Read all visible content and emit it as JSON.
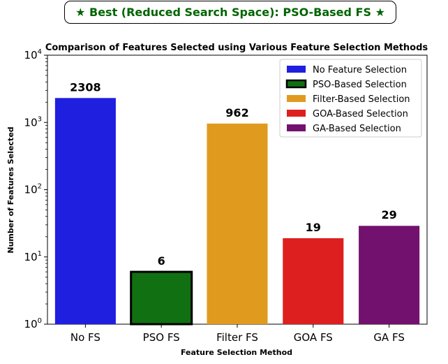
{
  "banner": {
    "text": "★ Best (Reduced Search Space): PSO-Based FS ★"
  },
  "chart_data": {
    "type": "bar",
    "title": "Comparison of Features Selected using Various Feature Selection Methods",
    "xlabel": "Feature Selection Method",
    "ylabel": "Number of Features Selected",
    "yscale": "log",
    "ylim": [
      1,
      10000
    ],
    "yticks": [
      {
        "value": 1,
        "exp": "0"
      },
      {
        "value": 10,
        "exp": "1"
      },
      {
        "value": 100,
        "exp": "2"
      },
      {
        "value": 1000,
        "exp": "3"
      },
      {
        "value": 10000,
        "exp": "4"
      }
    ],
    "categories": [
      "No FS",
      "PSO FS",
      "Filter FS",
      "GOA FS",
      "GA FS"
    ],
    "values": [
      2308,
      6,
      962,
      19,
      29
    ],
    "colors": [
      "#1f1fe0",
      "#117011",
      "#e09b1f",
      "#de1f1f",
      "#72126e"
    ],
    "highlight": "PSO FS",
    "legend": {
      "position": "top-right",
      "entries": [
        "No Feature Selection",
        "PSO-Based Selection",
        "Filter-Based Selection",
        "GOA-Based Selection",
        "GA-Based Selection"
      ]
    }
  }
}
